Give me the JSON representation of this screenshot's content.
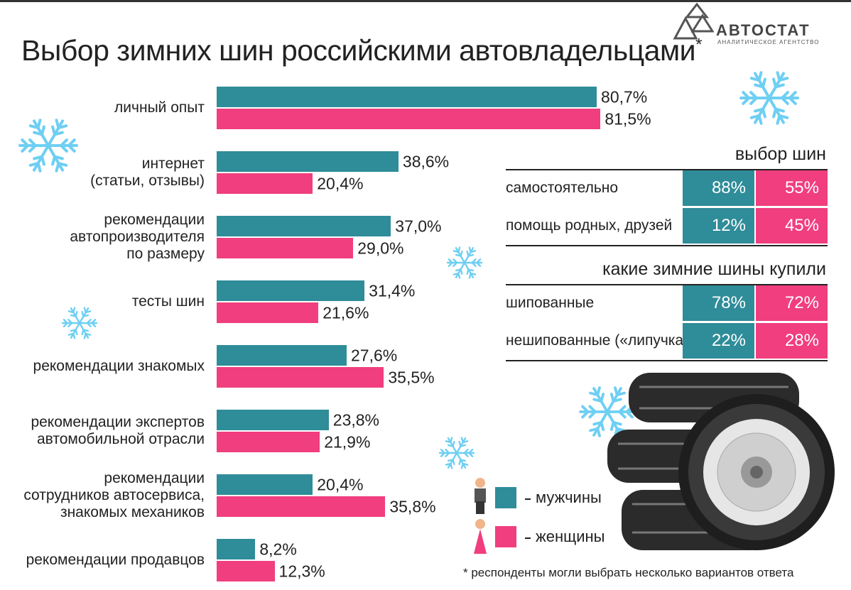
{
  "chart_data": {
    "type": "hbar",
    "title": "Выбор зимних шин российскими автовладельцами",
    "title_mark": "*",
    "categories": [
      "личный опыт",
      "интернет\n(статьи, отзывы)",
      "рекомендации\nавтопроизводителя\nпо размеру",
      "тесты шин",
      "рекомендации знакомых",
      "рекомендации экспертов\nавтомобильной отрасли",
      "рекомендации\nсотрудников автосервиса,\nзнакомых механиков",
      "рекомендации продавцов"
    ],
    "series": [
      {
        "name": "мужчины",
        "color": "#2f8c99",
        "values": [
          80.7,
          38.6,
          37.0,
          31.4,
          27.6,
          23.8,
          20.4,
          8.2
        ],
        "value_labels": [
          "80,7%",
          "38,6%",
          "37,0%",
          "31,4%",
          "27,6%",
          "23,8%",
          "20,4%",
          "8,2%"
        ]
      },
      {
        "name": "женщины",
        "color": "#f03e7e",
        "values": [
          81.5,
          20.4,
          29.0,
          21.6,
          35.5,
          21.9,
          35.8,
          12.3
        ],
        "value_labels": [
          "81,5%",
          "20,4%",
          "29,0%",
          "21,6%",
          "35,5%",
          "21,9%",
          "35,8%",
          "12,3%"
        ]
      }
    ],
    "xlim": [
      0,
      100
    ]
  },
  "logo": {
    "name": "АВТОСТАТ",
    "subtitle": "АНАЛИТИЧЕСКОЕ АГЕНТСТВО"
  },
  "tables": [
    {
      "title": "выбор шин",
      "rows": [
        [
          "самостоятельно",
          "88%",
          "55%"
        ],
        [
          "помощь родных, друзей",
          "12%",
          "45%"
        ]
      ]
    },
    {
      "title": "какие зимние шины купили",
      "rows": [
        [
          "шипованные",
          "78%",
          "72%"
        ],
        [
          "нешипованные («липучка»)",
          "22%",
          "28%"
        ]
      ]
    }
  ],
  "footnote": "* респонденты могли выбрать несколько вариантов ответа"
}
